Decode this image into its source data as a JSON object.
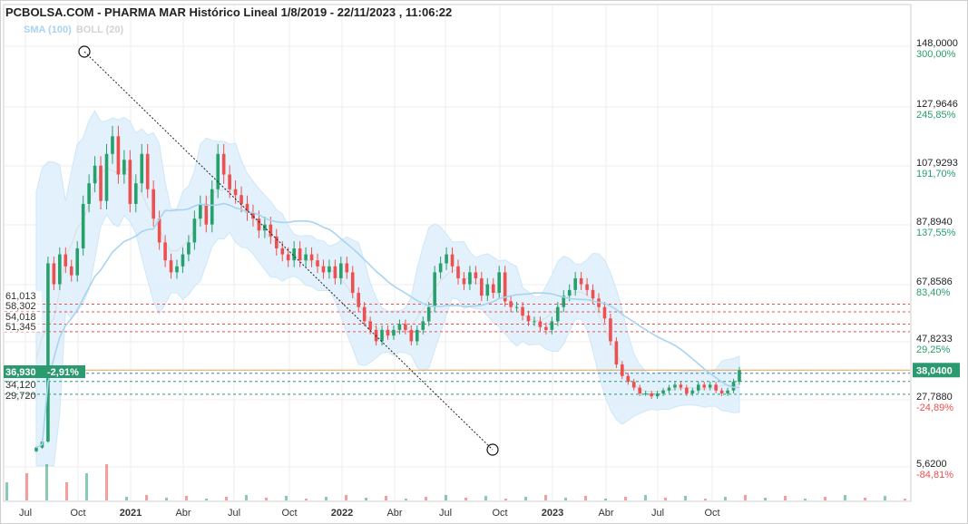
{
  "header": {
    "title": "PCBOLSA.COM - PHARMA MAR Histórico Lineal 1/8/2019 - 22/11/2023 , 11:06:22"
  },
  "legend": {
    "sma_label": "SMA (100)",
    "boll_label": "BOLL (20)"
  },
  "colors": {
    "up": "#27a06b",
    "down": "#ee4f4f",
    "sma": "#a8d4f2",
    "band_fill": "#dff0fb",
    "band_stroke": "#c9e5f8",
    "boll_mid": "#dddddd",
    "last_price_bg": "#2b9a6f",
    "positive_pct": "#27a06b",
    "negative_pct": "#ee4f4f"
  },
  "chart_data": {
    "type": "candlestick",
    "title": "PCBOLSA.COM - PHARMA MAR Histórico Lineal 1/8/2019 - 22/11/2023 , 11:06:22",
    "x_labels": [
      "Jul",
      "Oct",
      "2021",
      "Abr",
      "Jul",
      "Oct",
      "2022",
      "Abr",
      "Jul",
      "Oct",
      "2023",
      "Abr",
      "Jul",
      "Oct"
    ],
    "y_axis_ticks": [
      {
        "value": "148,0000",
        "pct": "300,00%",
        "sign": "pos"
      },
      {
        "value": "127,9646",
        "pct": "245,85%",
        "sign": "pos"
      },
      {
        "value": "107,9293",
        "pct": "191,70%",
        "sign": "pos"
      },
      {
        "value": "87,8940",
        "pct": "137,55%",
        "sign": "pos"
      },
      {
        "value": "67,8586",
        "pct": "83,40%",
        "sign": "pos"
      },
      {
        "value": "47,8233",
        "pct": "29,25%",
        "sign": "pos"
      },
      {
        "value": "27,7880",
        "pct": "-24,89%",
        "sign": "neg"
      },
      {
        "value": "5,6200",
        "pct": "-84,81%",
        "sign": "neg"
      }
    ],
    "ylim": [
      5.62,
      148.0
    ],
    "last_price": "38,0400",
    "left_level_labels": [
      "61,013",
      "58,302",
      "54,018",
      "51,345",
      "36,930",
      "-2,91%",
      "34,120",
      "29,720"
    ],
    "red_levels": [
      61.013,
      58.302,
      54.018,
      51.345
    ],
    "green_blue_levels": [
      36.93,
      34.12,
      29.72
    ],
    "orange_level": 38.04,
    "trendline": {
      "from": {
        "date": "2020-10",
        "value": 148.0
      },
      "to": {
        "date": "2022-10",
        "value": 5.62
      }
    },
    "weekly_closes": [
      12,
      14,
      75,
      68,
      78,
      74,
      71,
      80,
      95,
      102,
      108,
      96,
      112,
      118,
      105,
      110,
      95,
      102,
      112,
      100,
      90,
      82,
      76,
      72,
      74,
      78,
      82,
      90,
      95,
      88,
      100,
      112,
      105,
      100,
      98,
      95,
      92,
      90,
      86,
      88,
      84,
      80,
      78,
      76,
      80,
      76,
      78,
      76,
      74,
      72,
      74,
      70,
      75,
      72,
      65,
      60,
      55,
      52,
      48,
      52,
      50,
      52,
      54,
      52,
      48,
      52,
      55,
      60,
      72,
      75,
      78,
      74,
      70,
      68,
      72,
      70,
      64,
      68,
      65,
      72,
      62,
      60,
      60,
      57,
      55,
      55,
      53,
      52,
      55,
      60,
      64,
      66,
      70,
      68,
      66,
      63,
      60,
      56,
      48,
      40,
      36,
      34,
      32,
      30,
      30,
      29,
      30,
      31,
      32,
      33,
      32,
      30,
      31,
      33,
      32,
      33,
      31,
      30,
      31,
      34,
      38
    ]
  }
}
